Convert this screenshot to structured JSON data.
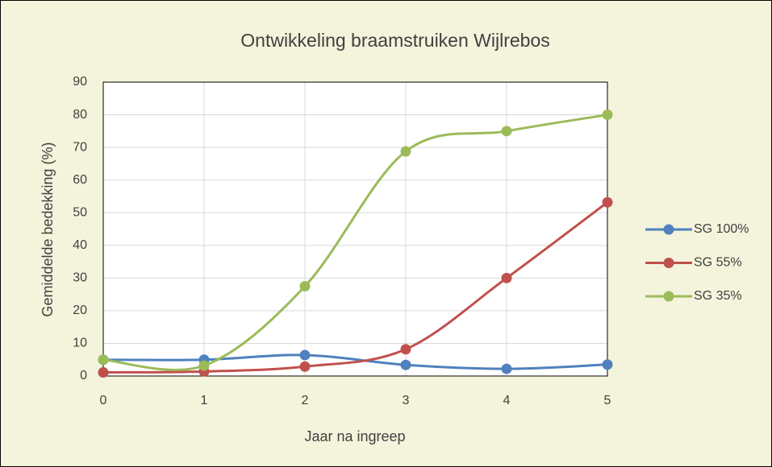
{
  "chart_data": {
    "type": "line",
    "title": "Ontwikkeling braamstruiken Wijlrebos",
    "x_label": "Jaar na ingreep",
    "y_label": "Gemiddelde bedekking (%)",
    "x": [
      0,
      1,
      2,
      3,
      4,
      5
    ],
    "series": [
      {
        "name": "SG 100%",
        "color": "#4f81bd",
        "values": [
          5,
          5,
          6.4,
          3.4,
          2.2,
          3.5
        ]
      },
      {
        "name": "SG 55%",
        "color": "#c0504d",
        "values": [
          1.1,
          1.4,
          2.9,
          8.2,
          30,
          53.2
        ]
      },
      {
        "name": "SG 35%",
        "color": "#9bbb59",
        "values": [
          5,
          3.2,
          27.5,
          68.8,
          75,
          80
        ]
      }
    ],
    "xlim": [
      0,
      5
    ],
    "xticks": [
      0,
      1,
      2,
      3,
      4,
      5
    ],
    "ylim": [
      0,
      90
    ],
    "yticks": [
      0,
      10,
      20,
      30,
      40,
      50,
      60,
      70,
      80,
      90
    ],
    "grid": true,
    "smooth": true,
    "legend": "right"
  }
}
